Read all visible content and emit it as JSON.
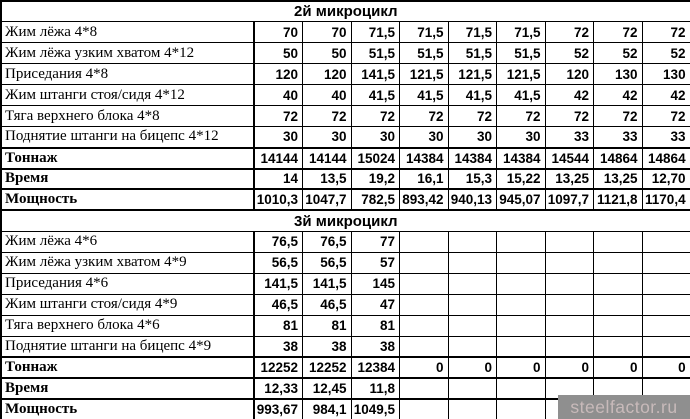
{
  "watermark": {
    "text": "steelfactor.ru",
    "background": "#8f8f8f",
    "color": "#c8baba"
  },
  "columns_per_section": 9,
  "sections": [
    {
      "title": "2й микроцикл",
      "rows": [
        {
          "label": "Жим лёжа 4*8",
          "total": false,
          "values": [
            "70",
            "70",
            "71,5",
            "71,5",
            "71,5",
            "71,5",
            "72",
            "72",
            "72"
          ]
        },
        {
          "label": "Жим лёжа узким хватом 4*12",
          "total": false,
          "values": [
            "50",
            "50",
            "51,5",
            "51,5",
            "51,5",
            "51,5",
            "52",
            "52",
            "52"
          ]
        },
        {
          "label": "Приседания 4*8",
          "total": false,
          "values": [
            "120",
            "120",
            "141,5",
            "121,5",
            "121,5",
            "121,5",
            "120",
            "130",
            "130"
          ]
        },
        {
          "label": "Жим штанги стоя/сидя 4*12",
          "total": false,
          "values": [
            "40",
            "40",
            "41,5",
            "41,5",
            "41,5",
            "41,5",
            "42",
            "42",
            "42"
          ]
        },
        {
          "label": "Тяга верхнего блока 4*8",
          "total": false,
          "values": [
            "72",
            "72",
            "72",
            "72",
            "72",
            "72",
            "72",
            "72",
            "72"
          ]
        },
        {
          "label": "Поднятие штанги на бицепс 4*12",
          "total": false,
          "values": [
            "30",
            "30",
            "30",
            "30",
            "30",
            "30",
            "33",
            "33",
            "33"
          ]
        },
        {
          "label": "Тоннаж",
          "total": true,
          "values": [
            "14144",
            "14144",
            "15024",
            "14384",
            "14384",
            "14384",
            "14544",
            "14864",
            "14864"
          ]
        },
        {
          "label": "Время",
          "total": true,
          "values": [
            "14",
            "13,5",
            "19,2",
            "16,1",
            "15,3",
            "15,22",
            "13,25",
            "13,25",
            "12,70"
          ]
        },
        {
          "label": "Мощность",
          "total": true,
          "values": [
            "1010,3",
            "1047,7",
            "782,5",
            "893,42",
            "940,13",
            "945,07",
            "1097,7",
            "1121,8",
            "1170,4"
          ]
        }
      ]
    },
    {
      "title": "3й микроцикл",
      "rows": [
        {
          "label": "Жим лёжа 4*6",
          "total": false,
          "values": [
            "76,5",
            "76,5",
            "77",
            "",
            "",
            "",
            "",
            "",
            ""
          ]
        },
        {
          "label": "Жим лёжа узким хватом 4*9",
          "total": false,
          "values": [
            "56,5",
            "56,5",
            "57",
            "",
            "",
            "",
            "",
            "",
            ""
          ]
        },
        {
          "label": "Приседания 4*6",
          "total": false,
          "values": [
            "141,5",
            "141,5",
            "145",
            "",
            "",
            "",
            "",
            "",
            ""
          ]
        },
        {
          "label": "Жим штанги стоя/сидя 4*9",
          "total": false,
          "values": [
            "46,5",
            "46,5",
            "47",
            "",
            "",
            "",
            "",
            "",
            ""
          ]
        },
        {
          "label": "Тяга верхнего блока 4*6",
          "total": false,
          "values": [
            "81",
            "81",
            "81",
            "",
            "",
            "",
            "",
            "",
            ""
          ]
        },
        {
          "label": "Поднятие штанги на бицепс 4*9",
          "total": false,
          "values": [
            "38",
            "38",
            "38",
            "",
            "",
            "",
            "",
            "",
            ""
          ]
        },
        {
          "label": "Тоннаж",
          "total": true,
          "values": [
            "12252",
            "12252",
            "12384",
            "0",
            "0",
            "0",
            "0",
            "0",
            "0"
          ]
        },
        {
          "label": "Время",
          "total": true,
          "values": [
            "12,33",
            "12,45",
            "11,8",
            "",
            "",
            "",
            "",
            "",
            ""
          ]
        },
        {
          "label": "Мощность",
          "total": true,
          "values": [
            "993,67",
            "984,1",
            "1049,5",
            "",
            "",
            "",
            "",
            "",
            ""
          ]
        }
      ]
    }
  ]
}
